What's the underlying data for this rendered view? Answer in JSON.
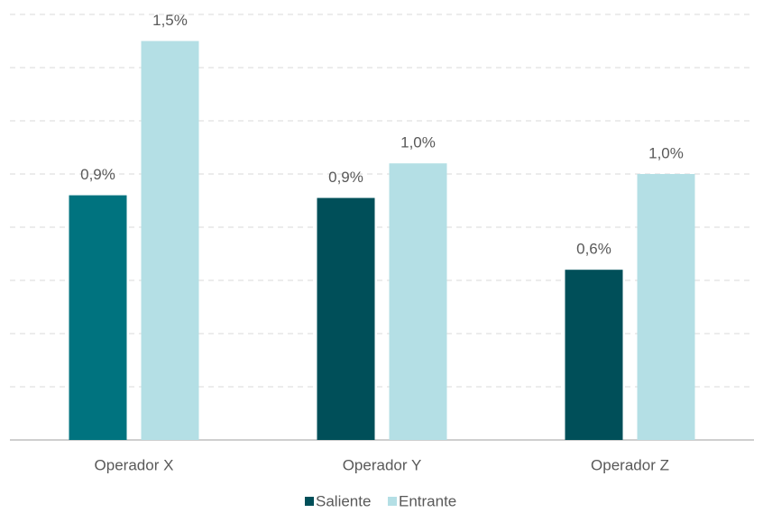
{
  "chart_data": {
    "type": "bar",
    "categories": [
      "Operador X",
      "Operador Y",
      "Operador Z"
    ],
    "series": [
      {
        "name": "Saliente",
        "color": "#004f59",
        "point_colors": [
          "#00737f",
          "#004f59",
          "#004f59"
        ],
        "values": [
          0.92,
          0.91,
          0.64
        ],
        "value_labels": [
          "0,9%",
          "0,9%",
          "0,6%"
        ]
      },
      {
        "name": "Entrante",
        "color": "#b4dfe5",
        "values": [
          1.5,
          1.04,
          1.0
        ],
        "value_labels": [
          "1,5%",
          "1,0%",
          "1,0%"
        ]
      }
    ],
    "ylim": [
      0,
      1.6
    ],
    "yticks": [
      0,
      0.2,
      0.4,
      0.6,
      0.8,
      1.0,
      1.2,
      1.4,
      1.6
    ],
    "grid": true,
    "legend": "bottom"
  }
}
